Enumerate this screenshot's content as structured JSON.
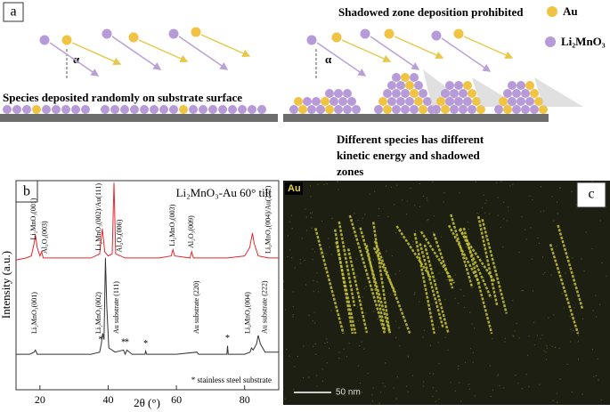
{
  "panel_a": {
    "label": "a",
    "heading": "Shadowed zone deposition prohibited",
    "legend": [
      "Au",
      "Li₂MnO₃"
    ],
    "angle": [
      "α",
      "α"
    ],
    "left_caption": "Species deposited randomly on substrate surface",
    "right_caption": [
      "Different species has different",
      "kinetic energy and shadowed",
      "zones"
    ]
  },
  "chart_data": {
    "type": "line",
    "panel_label": "b",
    "legend_title": "Li₂MnO₃-Au 60° tilt",
    "x_label": "2θ (°)",
    "y_label": "Intensity (a.u.)",
    "xlim": [
      13,
      90
    ],
    "ylim": [
      0,
      100
    ],
    "xticks": [
      20,
      40,
      60,
      80
    ],
    "series": [
      {
        "color": "#e8262b",
        "x": [
          13,
          16,
          17.5,
          18.3,
          18.7,
          19.2,
          20,
          20.5,
          21,
          25,
          30,
          35,
          37.5,
          38.3,
          39,
          40,
          41.2,
          41.7,
          42.2,
          45,
          50,
          55,
          58.5,
          59,
          59.5,
          64,
          64.5,
          65,
          70,
          75,
          80,
          81.5,
          82.3,
          82.8,
          84,
          87,
          90
        ],
        "values": [
          62,
          63,
          64,
          70,
          74,
          68,
          64,
          66,
          63,
          63,
          63,
          63,
          65,
          77,
          66,
          64,
          65,
          99,
          65,
          63,
          63,
          63,
          64,
          67,
          64,
          63,
          66,
          63,
          63,
          63,
          64,
          68,
          75,
          70,
          64,
          63,
          63
        ]
      },
      {
        "color": "#333333",
        "x": [
          13,
          17,
          18.3,
          18.7,
          19.2,
          25,
          30,
          35,
          37.5,
          38,
          38.4,
          38.8,
          39.2,
          39.6,
          40.2,
          42,
          44.5,
          45,
          45.5,
          47,
          50.8,
          51,
          51.3,
          60,
          66,
          66.5,
          70,
          74.8,
          75,
          75.2,
          80,
          81.6,
          82,
          82.5,
          83.5,
          84,
          84.6,
          86,
          90
        ],
        "values": [
          17,
          17,
          18,
          19,
          17,
          17,
          17,
          17,
          18,
          22,
          27,
          24,
          63,
          40,
          20,
          18,
          19,
          17,
          19,
          17,
          17,
          18.5,
          17,
          17,
          18,
          17,
          17,
          17,
          21,
          17,
          17,
          18,
          20,
          19,
          22,
          26,
          22,
          18,
          18
        ]
      }
    ],
    "annotations": [
      {
        "series": 0,
        "x": 18.3,
        "text": "Li₂MnO₃(001)"
      },
      {
        "series": 0,
        "x": 21.5,
        "text": "Al₂O₃(003)"
      },
      {
        "series": 0,
        "x": 37.3,
        "text": "Li₂MnO₃(002)/Au(111)"
      },
      {
        "series": 0,
        "x": 43.5,
        "text": "Al₂O₃(006)"
      },
      {
        "series": 0,
        "x": 59,
        "text": "Li₂MnO₃(003)"
      },
      {
        "series": 0,
        "x": 64.5,
        "text": "Al₂O₃(009)"
      },
      {
        "series": 0,
        "x": 87,
        "text": "Li₂MnO₃(004)/Au(222)"
      },
      {
        "series": 1,
        "x": 18.5,
        "text": "Li₂MnO₃(001)"
      },
      {
        "series": 1,
        "x": 37.3,
        "text": "Li₂MnO₃(002)"
      },
      {
        "series": 1,
        "x": 42.5,
        "text": "Au substrate (111)"
      },
      {
        "series": 1,
        "x": 66,
        "text": "Au substrate (220)"
      },
      {
        "series": 1,
        "x": 81,
        "text": "Li₂MnO₃(004)"
      },
      {
        "series": 1,
        "x": 86,
        "text": "Au substrate (222)"
      }
    ],
    "markers": [
      {
        "x": 37.8,
        "text": "*"
      },
      {
        "x": 44.5,
        "text": "*"
      },
      {
        "x": 45.5,
        "text": "*"
      },
      {
        "x": 51,
        "text": "*"
      },
      {
        "x": 75,
        "text": "*"
      }
    ],
    "footnote": "* stainless steel substrate"
  },
  "panel_c": {
    "label": "c",
    "element": "Au",
    "scale_bar": "50 nm"
  }
}
